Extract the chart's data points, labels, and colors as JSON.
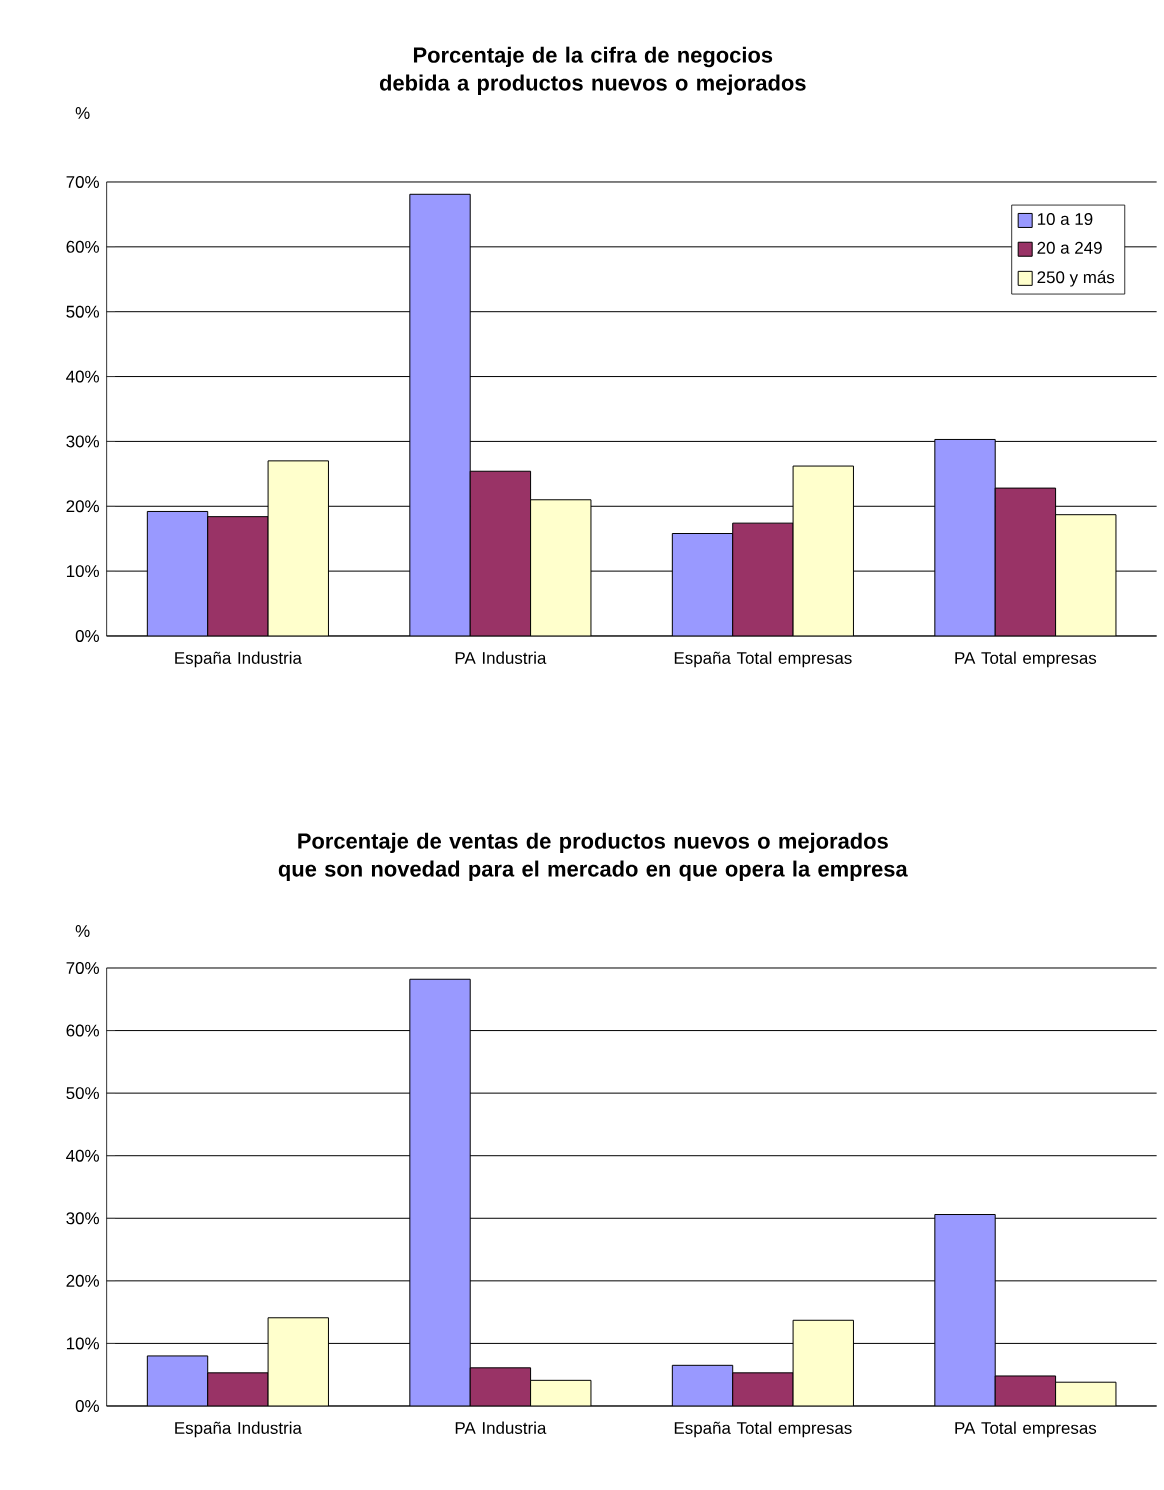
{
  "chart_data": [
    {
      "type": "bar",
      "title": "Porcentaje de la cifra de negocios debida a productos nuevos o mejorados",
      "ylabel": "%",
      "categories": [
        "España Industria",
        "PA Industria",
        "España Total empresas",
        "PA Total empresas"
      ],
      "series": [
        {
          "name": "10 a 19",
          "color": "#9999ff",
          "values": [
            19.2,
            68.1,
            15.8,
            30.3
          ]
        },
        {
          "name": "20 a 249",
          "color": "#993366",
          "values": [
            18.4,
            25.4,
            17.4,
            22.8
          ]
        },
        {
          "name": "250 y más",
          "color": "#ffffcc",
          "values": [
            27.0,
            21.0,
            26.2,
            18.7
          ]
        }
      ],
      "ylim": [
        0,
        70
      ],
      "yticks": [
        {
          "value": 0,
          "label": "0%"
        },
        {
          "value": 10,
          "label": "10%"
        },
        {
          "value": 20,
          "label": "20%"
        },
        {
          "value": 30,
          "label": "30%"
        },
        {
          "value": 40,
          "label": "40%"
        },
        {
          "value": 50,
          "label": "50%"
        },
        {
          "value": 60,
          "label": "60%"
        },
        {
          "value": 70,
          "label": "70%"
        }
      ],
      "grid": "y",
      "legend": "top right"
    },
    {
      "type": "bar",
      "title": "Porcentaje de ventas de productos nuevos o mejorados que son novedad para el mercado en que opera la empresa",
      "ylabel": "%",
      "categories": [
        "España Industria",
        "PA Industria",
        "España Total empresas",
        "PA Total empresas"
      ],
      "series": [
        {
          "color": "#9999ff",
          "values": [
            8.0,
            68.2,
            6.5,
            30.6
          ]
        },
        {
          "color": "#993366",
          "values": [
            5.3,
            6.1,
            5.3,
            4.8
          ]
        },
        {
          "color": "#ffffcc",
          "values": [
            14.1,
            4.1,
            13.7,
            3.8
          ]
        }
      ],
      "ylim": [
        0,
        70
      ],
      "yticks": [
        {
          "value": 0,
          "label": "0%"
        },
        {
          "value": 10,
          "label": "10%"
        },
        {
          "value": 20,
          "label": "20%"
        },
        {
          "value": 30,
          "label": "30%"
        },
        {
          "value": 40,
          "label": "40%"
        },
        {
          "value": 50,
          "label": "50%"
        },
        {
          "value": 60,
          "label": "60%"
        },
        {
          "value": 70,
          "label": "70%"
        }
      ],
      "grid": "y"
    }
  ]
}
